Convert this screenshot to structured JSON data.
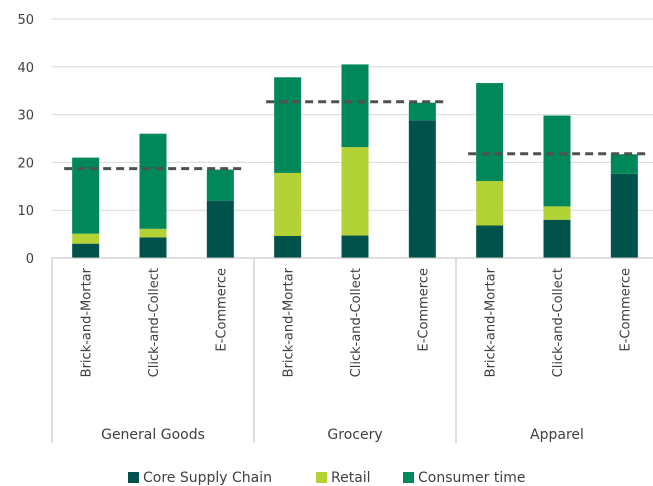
{
  "chart_data": {
    "type": "bar",
    "stacked": true,
    "ylim": [
      0,
      50
    ],
    "yticks": [
      0,
      10,
      20,
      30,
      40,
      50
    ],
    "grid": true,
    "legend_position": "bottom",
    "groups": [
      {
        "label": "General Goods",
        "categories": [
          "Brick-and-Mortar",
          "Click-and-Collect",
          "E-Commerce"
        ],
        "average": 18.7
      },
      {
        "label": "Grocery",
        "categories": [
          "Brick-and-Mortar",
          "Click-and-Collect",
          "E-Commerce"
        ],
        "average": 32.7
      },
      {
        "label": "Apparel",
        "categories": [
          "Brick-and-Mortar",
          "Click-and-Collect",
          "E-Commerce"
        ],
        "average": 21.8
      }
    ],
    "series": [
      {
        "name": "Core Supply Chain",
        "color": "#00524b",
        "values": [
          3.0,
          4.3,
          12.0,
          4.6,
          4.7,
          28.8,
          6.8,
          8.0,
          17.6
        ]
      },
      {
        "name": "Retail",
        "color": "#b2d235",
        "values": [
          2.1,
          1.8,
          0.0,
          13.2,
          18.5,
          0.0,
          9.3,
          2.8,
          0.0
        ]
      },
      {
        "name": "Consumer time",
        "color": "#00875a",
        "values": [
          15.9,
          19.9,
          6.5,
          20.0,
          17.3,
          3.7,
          20.5,
          19.0,
          4.1
        ]
      }
    ]
  }
}
